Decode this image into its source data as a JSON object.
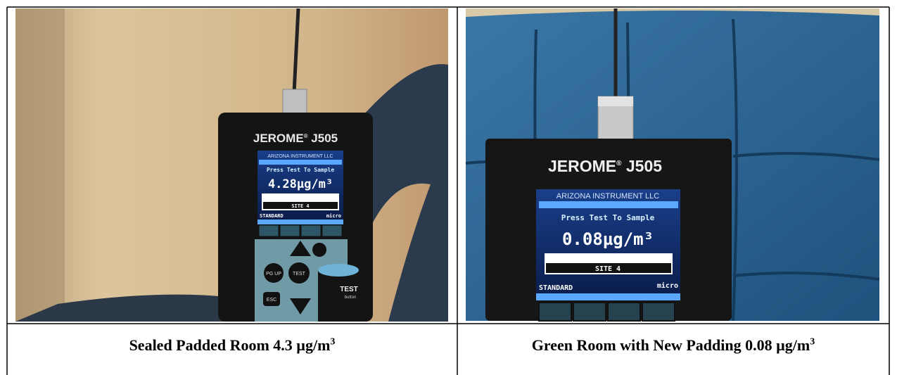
{
  "cells": [
    {
      "photo": {
        "model": "JEROME",
        "mark": "®",
        "model_number": "J505",
        "maker": "ARIZONA INSTRUMENT LLC",
        "prompt": "Press Test To Sample",
        "reading": "4.28µg/m³",
        "site": "SITE 4",
        "mode": "STANDARD",
        "unit_mode": "micro",
        "keys": [
          "PG UP",
          "TEST",
          "ESC"
        ],
        "button_label": "TEST",
        "button_sub": "button"
      },
      "caption": {
        "text": "Sealed Padded Room 4.3 µg/m",
        "sup": "3"
      }
    },
    {
      "photo": {
        "model": "JEROME",
        "mark": "®",
        "model_number": "J505",
        "maker": "ARIZONA INSTRUMENT LLC",
        "prompt": "Press Test To Sample",
        "reading": "0.08µg/m³",
        "site": "SITE 4",
        "mode": "STANDARD",
        "unit_mode": "micro"
      },
      "caption": {
        "text": "Green Room with New Padding 0.08 µg/m",
        "sup": "3"
      }
    }
  ]
}
